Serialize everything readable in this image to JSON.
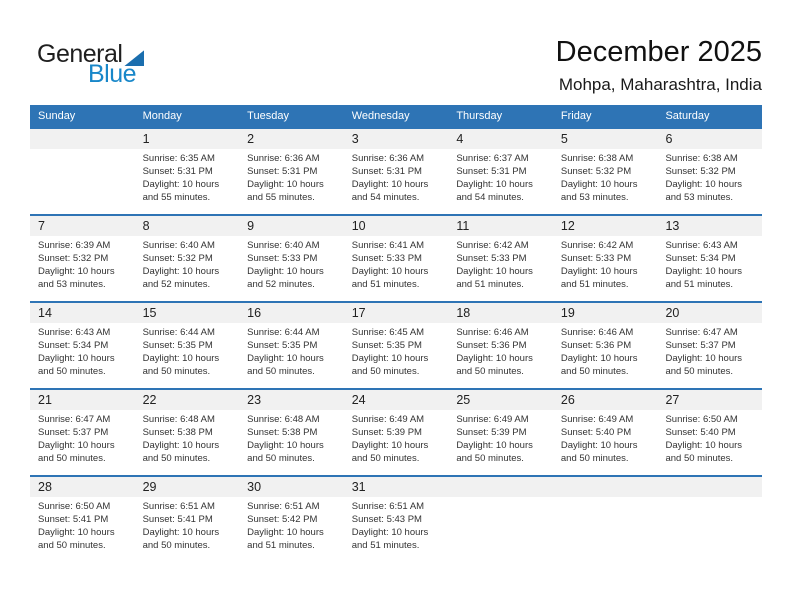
{
  "logo": {
    "general": "General",
    "blue": "Blue"
  },
  "header": {
    "title": "December 2025",
    "location": "Mohpa, Maharashtra, India"
  },
  "labels": {
    "sunrise": "Sunrise:",
    "sunset": "Sunset:",
    "daylight": "Daylight:"
  },
  "colors": {
    "accent": "#2e74b5",
    "band": "#f1f1f1",
    "logo_blue": "#1887c9"
  },
  "calendar": {
    "day_headers": [
      "Sunday",
      "Monday",
      "Tuesday",
      "Wednesday",
      "Thursday",
      "Friday",
      "Saturday"
    ],
    "weeks": [
      {
        "days": [
          null,
          {
            "day": "1",
            "sunrise": "6:35 AM",
            "sunset": "5:31 PM",
            "daylight": "10 hours and 55 minutes."
          },
          {
            "day": "2",
            "sunrise": "6:36 AM",
            "sunset": "5:31 PM",
            "daylight": "10 hours and 55 minutes."
          },
          {
            "day": "3",
            "sunrise": "6:36 AM",
            "sunset": "5:31 PM",
            "daylight": "10 hours and 54 minutes."
          },
          {
            "day": "4",
            "sunrise": "6:37 AM",
            "sunset": "5:31 PM",
            "daylight": "10 hours and 54 minutes."
          },
          {
            "day": "5",
            "sunrise": "6:38 AM",
            "sunset": "5:32 PM",
            "daylight": "10 hours and 53 minutes."
          },
          {
            "day": "6",
            "sunrise": "6:38 AM",
            "sunset": "5:32 PM",
            "daylight": "10 hours and 53 minutes."
          }
        ]
      },
      {
        "days": [
          {
            "day": "7",
            "sunrise": "6:39 AM",
            "sunset": "5:32 PM",
            "daylight": "10 hours and 53 minutes."
          },
          {
            "day": "8",
            "sunrise": "6:40 AM",
            "sunset": "5:32 PM",
            "daylight": "10 hours and 52 minutes."
          },
          {
            "day": "9",
            "sunrise": "6:40 AM",
            "sunset": "5:33 PM",
            "daylight": "10 hours and 52 minutes."
          },
          {
            "day": "10",
            "sunrise": "6:41 AM",
            "sunset": "5:33 PM",
            "daylight": "10 hours and 51 minutes."
          },
          {
            "day": "11",
            "sunrise": "6:42 AM",
            "sunset": "5:33 PM",
            "daylight": "10 hours and 51 minutes."
          },
          {
            "day": "12",
            "sunrise": "6:42 AM",
            "sunset": "5:33 PM",
            "daylight": "10 hours and 51 minutes."
          },
          {
            "day": "13",
            "sunrise": "6:43 AM",
            "sunset": "5:34 PM",
            "daylight": "10 hours and 51 minutes."
          }
        ]
      },
      {
        "days": [
          {
            "day": "14",
            "sunrise": "6:43 AM",
            "sunset": "5:34 PM",
            "daylight": "10 hours and 50 minutes."
          },
          {
            "day": "15",
            "sunrise": "6:44 AM",
            "sunset": "5:35 PM",
            "daylight": "10 hours and 50 minutes."
          },
          {
            "day": "16",
            "sunrise": "6:44 AM",
            "sunset": "5:35 PM",
            "daylight": "10 hours and 50 minutes."
          },
          {
            "day": "17",
            "sunrise": "6:45 AM",
            "sunset": "5:35 PM",
            "daylight": "10 hours and 50 minutes."
          },
          {
            "day": "18",
            "sunrise": "6:46 AM",
            "sunset": "5:36 PM",
            "daylight": "10 hours and 50 minutes."
          },
          {
            "day": "19",
            "sunrise": "6:46 AM",
            "sunset": "5:36 PM",
            "daylight": "10 hours and 50 minutes."
          },
          {
            "day": "20",
            "sunrise": "6:47 AM",
            "sunset": "5:37 PM",
            "daylight": "10 hours and 50 minutes."
          }
        ]
      },
      {
        "days": [
          {
            "day": "21",
            "sunrise": "6:47 AM",
            "sunset": "5:37 PM",
            "daylight": "10 hours and 50 minutes."
          },
          {
            "day": "22",
            "sunrise": "6:48 AM",
            "sunset": "5:38 PM",
            "daylight": "10 hours and 50 minutes."
          },
          {
            "day": "23",
            "sunrise": "6:48 AM",
            "sunset": "5:38 PM",
            "daylight": "10 hours and 50 minutes."
          },
          {
            "day": "24",
            "sunrise": "6:49 AM",
            "sunset": "5:39 PM",
            "daylight": "10 hours and 50 minutes."
          },
          {
            "day": "25",
            "sunrise": "6:49 AM",
            "sunset": "5:39 PM",
            "daylight": "10 hours and 50 minutes."
          },
          {
            "day": "26",
            "sunrise": "6:49 AM",
            "sunset": "5:40 PM",
            "daylight": "10 hours and 50 minutes."
          },
          {
            "day": "27",
            "sunrise": "6:50 AM",
            "sunset": "5:40 PM",
            "daylight": "10 hours and 50 minutes."
          }
        ]
      },
      {
        "days": [
          {
            "day": "28",
            "sunrise": "6:50 AM",
            "sunset": "5:41 PM",
            "daylight": "10 hours and 50 minutes."
          },
          {
            "day": "29",
            "sunrise": "6:51 AM",
            "sunset": "5:41 PM",
            "daylight": "10 hours and 50 minutes."
          },
          {
            "day": "30",
            "sunrise": "6:51 AM",
            "sunset": "5:42 PM",
            "daylight": "10 hours and 51 minutes."
          },
          {
            "day": "31",
            "sunrise": "6:51 AM",
            "sunset": "5:43 PM",
            "daylight": "10 hours and 51 minutes."
          },
          null,
          null,
          null
        ]
      }
    ]
  }
}
